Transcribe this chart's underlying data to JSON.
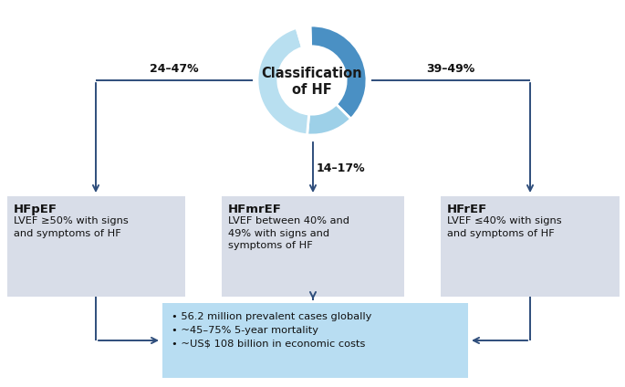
{
  "bg_color": "#ffffff",
  "arrow_color": "#2e4d7b",
  "label_left": "24–47%",
  "label_right": "39–49%",
  "label_bottom": "14–17%",
  "box_bg_gray": "#d8dde8",
  "box_bg_blue": "#b8ddf2",
  "box_title_left": "HFpEF",
  "box_title_mid": "HFmrEF",
  "box_title_right": "HFrEF",
  "box_text_left": "LVEF ≥50% with signs\nand symptoms of HF",
  "box_text_mid": "LVEF between 40% and\n49% with signs and\nsymptoms of HF",
  "box_text_right": "LVEF ≤40% with signs\nand symptoms of HF",
  "box_bullets": "• 56.2 million prevalent cases globally\n• ~45–75% 5-year mortality\n• ~US$ 108 billion in economic costs",
  "donut_center_line1": "Classification",
  "donut_center_line2": "of HF",
  "donut_sizes": [
    38,
    14,
    44,
    4
  ],
  "donut_colors": [
    "#4a90c4",
    "#9dd0e8",
    "#b8dff0",
    "#ffffff"
  ],
  "donut_startangle": 92,
  "title_fontsize": 9,
  "body_fontsize": 8.2,
  "pct_fontsize": 9,
  "donut_label_fontsize": 10.5
}
